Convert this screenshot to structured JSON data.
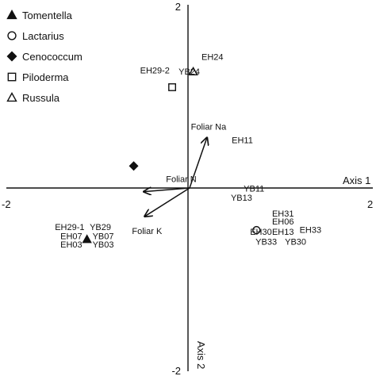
{
  "chart_data": {
    "type": "scatter",
    "xlim": [
      -2,
      2
    ],
    "ylim": [
      -2,
      2
    ],
    "axis_ticks": {
      "x_left": "-2",
      "x_right": "2",
      "y_top": "2",
      "y_bottom": "-2"
    },
    "axis_titles": {
      "x": "Axis 1",
      "y": "Axis 2"
    },
    "legend_position": "top-left",
    "legend": [
      {
        "name": "Tomentella",
        "marker": "filled-triangle"
      },
      {
        "name": "Lactarius",
        "marker": "open-circle"
      },
      {
        "name": "Cenococcum",
        "marker": "filled-diamond"
      },
      {
        "name": "Piloderma",
        "marker": "open-square"
      },
      {
        "name": "Russula",
        "marker": "open-triangle"
      }
    ],
    "points": [
      {
        "series": "Tomentella",
        "marker": "filled-triangle",
        "x": -1.12,
        "y": -0.56
      },
      {
        "series": "Lactarius",
        "marker": "open-circle",
        "x": 0.73,
        "y": -0.46
      },
      {
        "series": "Cenococcum",
        "marker": "filled-diamond",
        "x": -0.61,
        "y": 0.24
      },
      {
        "series": "Piloderma",
        "marker": "open-square",
        "x": -0.19,
        "y": 1.1
      },
      {
        "series": "Russula",
        "marker": "open-triangle",
        "x": 0.04,
        "y": 1.27
      }
    ],
    "vectors": [
      {
        "label": "Foliar Na",
        "x": 0.19,
        "y": 0.55
      },
      {
        "label": "Foliar N",
        "x": -0.5,
        "y": -0.04
      },
      {
        "label": "Foliar K",
        "x": -0.49,
        "y": -0.31
      }
    ],
    "point_labels": [
      {
        "text": "EH29-1",
        "x": -1.47,
        "y": -0.46
      },
      {
        "text": "YB29",
        "x": -1.09,
        "y": -0.46
      },
      {
        "text": "EH07",
        "x": -1.41,
        "y": -0.56
      },
      {
        "text": "YB07",
        "x": -1.06,
        "y": -0.56
      },
      {
        "text": "EH03",
        "x": -1.41,
        "y": -0.65
      },
      {
        "text": "YB03",
        "x": -1.06,
        "y": -0.65
      },
      {
        "text": "EH29-2",
        "x": -0.54,
        "y": 1.25
      },
      {
        "text": "YB24",
        "x": -0.12,
        "y": 1.24
      },
      {
        "text": "EH24",
        "x": 0.13,
        "y": 1.4
      },
      {
        "text": "EH11",
        "x": 0.46,
        "y": 0.49
      },
      {
        "text": "YB11",
        "x": 0.59,
        "y": -0.04
      },
      {
        "text": "YB13",
        "x": 0.45,
        "y": -0.14
      },
      {
        "text": "EH31",
        "x": 0.9,
        "y": -0.31
      },
      {
        "text": "EH06",
        "x": 0.9,
        "y": -0.4
      },
      {
        "text": "EH30",
        "x": 0.66,
        "y": -0.51
      },
      {
        "text": "EH13",
        "x": 0.9,
        "y": -0.51
      },
      {
        "text": "EH33",
        "x": 1.2,
        "y": -0.49
      },
      {
        "text": "YB33",
        "x": 0.72,
        "y": -0.62
      },
      {
        "text": "YB30",
        "x": 1.04,
        "y": -0.62
      }
    ]
  }
}
